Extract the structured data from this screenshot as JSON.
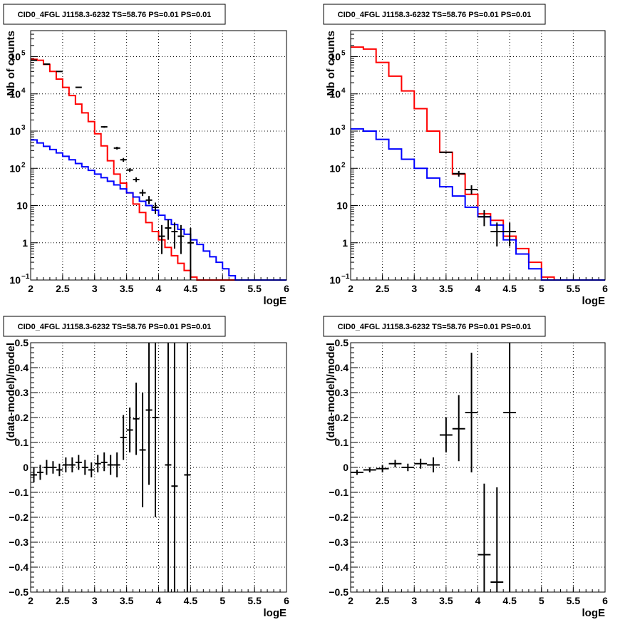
{
  "colors": {
    "model": "#ff0000",
    "background": "#0000ff",
    "data": "#000000",
    "grid": "#000000"
  },
  "chart_data": [
    {
      "type": "line",
      "title": "CID0_4FGL J1158.3-6232 TS=58.76 PS=0.01 PS=0.01",
      "xlabel": "logE",
      "ylabel": "Nb of counts",
      "xlim": [
        2,
        6
      ],
      "ylim": [
        0.1,
        500000
      ],
      "yscale": "log",
      "grid": true,
      "xticks": [
        "2",
        "2.5",
        "3",
        "3.5",
        "4",
        "4.5",
        "5",
        "5.5",
        "6"
      ],
      "yticks": [
        {
          "value": 0.1,
          "label": "10",
          "exp": "−1"
        },
        {
          "value": 1,
          "label": "1",
          "exp": ""
        },
        {
          "value": 10,
          "label": "10",
          "exp": ""
        },
        {
          "value": 100,
          "label": "10",
          "exp": "2"
        },
        {
          "value": 1000,
          "label": "10",
          "exp": "3"
        },
        {
          "value": 10000,
          "label": "10",
          "exp": "4"
        },
        {
          "value": 100000,
          "label": "10",
          "exp": "5"
        }
      ],
      "bin_edges": [
        2,
        2.1,
        2.2,
        2.3,
        2.4,
        2.5,
        2.6,
        2.7,
        2.8,
        2.9,
        3,
        3.1,
        3.2,
        3.3,
        3.4,
        3.5,
        3.6,
        3.7,
        3.8,
        3.9,
        4,
        4.1,
        4.2,
        4.3,
        4.4,
        4.5,
        4.6,
        4.7,
        4.8,
        4.9,
        5,
        5.1,
        5.2,
        5.3,
        5.4,
        5.5,
        5.6,
        5.7,
        5.8,
        5.9,
        6
      ],
      "series": [
        {
          "role": "model",
          "values": [
            85000,
            80000,
            62000,
            40000,
            25000,
            15000,
            9000,
            5300,
            3100,
            1800,
            850,
            400,
            160,
            70,
            40,
            22,
            11,
            6.5,
            3.5,
            2.0,
            1.2,
            0.75,
            0.45,
            0.28,
            0.18,
            0.12,
            0.1,
            0.1,
            0.1,
            0.1,
            0.1,
            0.1,
            0.1,
            0.1,
            0.1,
            0.1,
            0.1,
            0.1,
            0.1,
            0.1
          ]
        },
        {
          "role": "background",
          "values": [
            580,
            480,
            390,
            320,
            260,
            210,
            170,
            135,
            110,
            88,
            70,
            56,
            45,
            36,
            28,
            22,
            17,
            13,
            10,
            7.5,
            5.5,
            4.2,
            3.1,
            2.3,
            1.7,
            1.2,
            0.9,
            0.6,
            0.42,
            0.3,
            0.2,
            0.13,
            0.1,
            0.1,
            0.1,
            0.1,
            0.1,
            0.1,
            0.1,
            0.1
          ]
        },
        {
          "role": "data",
          "points": [
            {
              "x": 2.05,
              "y": 80000,
              "lo": 79600,
              "hi": 80400
            },
            {
              "x": 2.25,
              "y": 63000,
              "lo": 62700,
              "hi": 63300
            },
            {
              "x": 2.45,
              "y": 40000,
              "lo": 39700,
              "hi": 40300
            },
            {
              "x": 2.75,
              "y": 15000,
              "lo": 14800,
              "hi": 15200
            },
            {
              "x": 3.15,
              "y": 1300,
              "lo": 1230,
              "hi": 1370
            },
            {
              "x": 3.35,
              "y": 350,
              "lo": 320,
              "hi": 380
            },
            {
              "x": 3.45,
              "y": 170,
              "lo": 150,
              "hi": 190
            },
            {
              "x": 3.55,
              "y": 90,
              "lo": 80,
              "hi": 100
            },
            {
              "x": 3.65,
              "y": 50,
              "lo": 43,
              "hi": 57
            },
            {
              "x": 3.75,
              "y": 22,
              "lo": 18,
              "hi": 27
            },
            {
              "x": 3.85,
              "y": 14,
              "lo": 11,
              "hi": 18
            },
            {
              "x": 3.95,
              "y": 9,
              "lo": 6,
              "hi": 12
            },
            {
              "x": 4.05,
              "y": 1.5,
              "lo": 0.5,
              "hi": 3
            },
            {
              "x": 4.15,
              "y": 2.5,
              "lo": 1.2,
              "hi": 4.2
            },
            {
              "x": 4.25,
              "y": 2,
              "lo": 0.7,
              "hi": 3.5
            },
            {
              "x": 4.35,
              "y": 1.5,
              "lo": 0.5,
              "hi": 3
            },
            {
              "x": 4.5,
              "y": 1,
              "lo": 0.1,
              "hi": 2.5
            }
          ]
        }
      ]
    },
    {
      "type": "line",
      "title": "CID0_4FGL J1158.3-6232 TS=58.76 PS=0.01 PS=0.01",
      "xlabel": "logE",
      "ylabel": "Nb of counts",
      "xlim": [
        2,
        6
      ],
      "ylim": [
        0.1,
        500000
      ],
      "yscale": "log",
      "grid": true,
      "xticks": [
        "2",
        "2.5",
        "3",
        "3.5",
        "4",
        "4.5",
        "5",
        "5.5",
        "6"
      ],
      "yticks": [
        {
          "value": 0.1,
          "label": "10",
          "exp": "−1"
        },
        {
          "value": 1,
          "label": "1",
          "exp": ""
        },
        {
          "value": 10,
          "label": "10",
          "exp": ""
        },
        {
          "value": 100,
          "label": "10",
          "exp": "2"
        },
        {
          "value": 1000,
          "label": "10",
          "exp": "3"
        },
        {
          "value": 10000,
          "label": "10",
          "exp": "4"
        },
        {
          "value": 100000,
          "label": "10",
          "exp": "5"
        }
      ],
      "bin_edges": [
        2,
        2.2,
        2.4,
        2.6,
        2.8,
        3,
        3.2,
        3.4,
        3.6,
        3.8,
        4,
        4.2,
        4.4,
        4.6,
        4.8,
        5,
        5.2,
        5.4,
        5.6,
        5.8,
        6
      ],
      "series": [
        {
          "role": "model",
          "values": [
            180000,
            160000,
            70000,
            30000,
            12000,
            4000,
            1000,
            270,
            70,
            20,
            6,
            4,
            1.5,
            0.7,
            0.3,
            0.12,
            0.1,
            0.1,
            0.1,
            0.1
          ]
        },
        {
          "role": "background",
          "values": [
            1150,
            1000,
            600,
            330,
            175,
            100,
            55,
            32,
            18,
            9,
            5,
            3,
            1.2,
            0.5,
            0.2,
            0.1,
            0.1,
            0.1,
            0.1,
            0.1
          ]
        },
        {
          "role": "data",
          "points": [
            {
              "x": 3.7,
              "y": 72,
              "lo": 60,
              "hi": 85
            },
            {
              "x": 3.9,
              "y": 27,
              "lo": 20,
              "hi": 35
            },
            {
              "x": 4.1,
              "y": 5,
              "lo": 2.8,
              "hi": 7.5
            },
            {
              "x": 4.3,
              "y": 2,
              "lo": 0.8,
              "hi": 3.5
            },
            {
              "x": 4.5,
              "y": 2,
              "lo": 0.8,
              "hi": 3.5
            },
            {
              "x": 3.5,
              "y": 270,
              "lo": 255,
              "hi": 285
            }
          ]
        }
      ]
    },
    {
      "type": "scatter",
      "title": "CID0_4FGL J1158.3-6232 TS=58.76 PS=0.01 PS=0.01",
      "xlabel": "logE",
      "ylabel": "(data-model)/model",
      "xlim": [
        2,
        6
      ],
      "ylim": [
        -0.5,
        0.5
      ],
      "grid": true,
      "xticks": [
        "2",
        "2.5",
        "3",
        "3.5",
        "4",
        "4.5",
        "5",
        "5.5",
        "6"
      ],
      "yticks": [
        "−0.5",
        "−0.4",
        "−0.3",
        "−0.2",
        "−0.1",
        "0",
        "0.1",
        "0.2",
        "0.3",
        "0.4",
        "0.5"
      ],
      "series": [
        {
          "role": "data",
          "points": [
            {
              "x": 2.05,
              "y": -0.03,
              "lo": -0.06,
              "hi": 0.0
            },
            {
              "x": 2.15,
              "y": -0.02,
              "lo": -0.05,
              "hi": 0.01
            },
            {
              "x": 2.25,
              "y": 0.0,
              "lo": -0.03,
              "hi": 0.03
            },
            {
              "x": 2.35,
              "y": 0.0,
              "lo": -0.025,
              "hi": 0.025
            },
            {
              "x": 2.45,
              "y": -0.01,
              "lo": -0.035,
              "hi": 0.015
            },
            {
              "x": 2.55,
              "y": 0.01,
              "lo": -0.02,
              "hi": 0.04
            },
            {
              "x": 2.65,
              "y": 0.01,
              "lo": -0.02,
              "hi": 0.04
            },
            {
              "x": 2.75,
              "y": 0.02,
              "lo": -0.01,
              "hi": 0.05
            },
            {
              "x": 2.85,
              "y": 0.0,
              "lo": -0.03,
              "hi": 0.03
            },
            {
              "x": 2.95,
              "y": -0.01,
              "lo": -0.04,
              "hi": 0.02
            },
            {
              "x": 3.05,
              "y": 0.015,
              "lo": -0.02,
              "hi": 0.05
            },
            {
              "x": 3.15,
              "y": 0.02,
              "lo": -0.015,
              "hi": 0.06
            },
            {
              "x": 3.25,
              "y": 0.01,
              "lo": -0.03,
              "hi": 0.05
            },
            {
              "x": 3.35,
              "y": 0.01,
              "lo": -0.04,
              "hi": 0.06
            },
            {
              "x": 3.45,
              "y": 0.12,
              "lo": 0.03,
              "hi": 0.21
            },
            {
              "x": 3.55,
              "y": 0.15,
              "lo": 0.06,
              "hi": 0.24
            },
            {
              "x": 3.65,
              "y": 0.195,
              "lo": 0.05,
              "hi": 0.34
            },
            {
              "x": 3.75,
              "y": 0.07,
              "lo": -0.16,
              "hi": 0.3
            },
            {
              "x": 3.85,
              "y": 0.23,
              "lo": -0.07,
              "hi": 0.5
            },
            {
              "x": 3.95,
              "y": 0.2,
              "lo": -0.2,
              "hi": 0.5
            },
            {
              "x": 4.15,
              "y": 0.01,
              "lo": -0.5,
              "hi": 0.5
            },
            {
              "x": 4.25,
              "y": -0.075,
              "lo": -0.5,
              "hi": 0.5
            },
            {
              "x": 4.45,
              "y": -0.03,
              "lo": -0.5,
              "hi": 0.5
            }
          ]
        }
      ]
    },
    {
      "type": "scatter",
      "title": "CID0_4FGL J1158.3-6232 TS=58.76 PS=0.01 PS=0.01",
      "xlabel": "logE",
      "ylabel": "(data-model)/model",
      "xlim": [
        2,
        6
      ],
      "ylim": [
        -0.5,
        0.5
      ],
      "grid": true,
      "xticks": [
        "2",
        "2.5",
        "3",
        "3.5",
        "4",
        "4.5",
        "5",
        "5.5",
        "6"
      ],
      "yticks": [
        "−0.5",
        "−0.4",
        "−0.3",
        "−0.2",
        "−0.1",
        "0",
        "0.1",
        "0.2",
        "0.3",
        "0.4",
        "0.5"
      ],
      "series": [
        {
          "role": "data",
          "points": [
            {
              "x": 2.1,
              "y": -0.02,
              "lo": -0.03,
              "hi": -0.01
            },
            {
              "x": 2.3,
              "y": -0.01,
              "lo": -0.02,
              "hi": 0.0
            },
            {
              "x": 2.5,
              "y": -0.005,
              "lo": -0.02,
              "hi": 0.01
            },
            {
              "x": 2.7,
              "y": 0.015,
              "lo": 0.0,
              "hi": 0.03
            },
            {
              "x": 2.9,
              "y": 0.0,
              "lo": -0.015,
              "hi": 0.015
            },
            {
              "x": 3.1,
              "y": 0.015,
              "lo": -0.005,
              "hi": 0.035
            },
            {
              "x": 3.3,
              "y": 0.01,
              "lo": -0.02,
              "hi": 0.04
            },
            {
              "x": 3.5,
              "y": 0.13,
              "lo": 0.06,
              "hi": 0.2
            },
            {
              "x": 3.7,
              "y": 0.155,
              "lo": 0.025,
              "hi": 0.29
            },
            {
              "x": 3.9,
              "y": 0.22,
              "lo": -0.02,
              "hi": 0.46
            },
            {
              "x": 4.1,
              "y": -0.35,
              "lo": -0.5,
              "hi": -0.065
            },
            {
              "x": 4.3,
              "y": -0.46,
              "lo": -0.5,
              "hi": -0.08
            },
            {
              "x": 4.5,
              "y": 0.22,
              "lo": -0.5,
              "hi": 0.5
            }
          ]
        }
      ]
    }
  ]
}
